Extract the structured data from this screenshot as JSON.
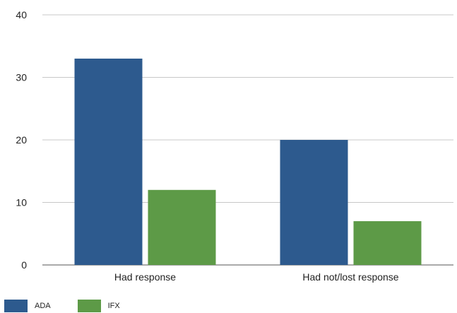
{
  "chart_data": {
    "type": "bar",
    "categories": [
      "Had response",
      "Had not/lost response"
    ],
    "series": [
      {
        "name": "ADA",
        "values": [
          33,
          20
        ],
        "color": "#2d5a8e"
      },
      {
        "name": "IFX",
        "values": [
          12,
          7
        ],
        "color": "#5d9a47"
      }
    ],
    "ylim": [
      0,
      40
    ],
    "yticks": [
      0,
      10,
      20,
      30,
      40
    ],
    "grid": true,
    "legend_position": "bottom-left"
  }
}
